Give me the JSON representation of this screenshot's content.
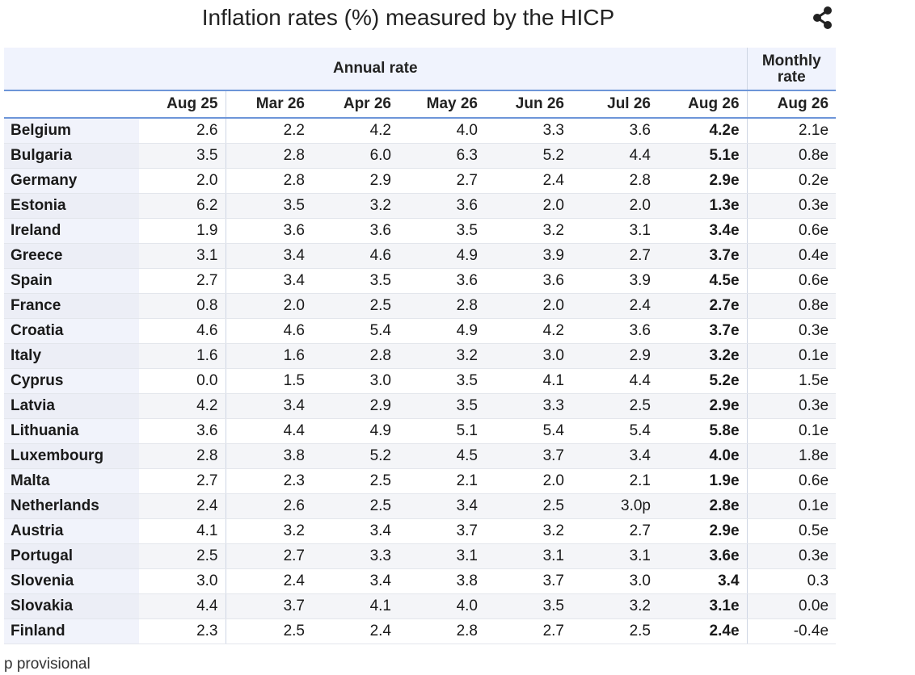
{
  "title": "Inflation rates (%) measured by the HICP",
  "icons": {
    "share": "share-icon"
  },
  "table": {
    "group_headers": {
      "annual": "Annual rate",
      "monthly_line1": "Monthly",
      "monthly_line2": "rate"
    },
    "columns": [
      "Aug 25",
      "Mar 26",
      "Apr 26",
      "May 26",
      "Jun 26",
      "Jul 26",
      "Aug 26",
      "Aug 26"
    ],
    "rows": [
      {
        "country": "Belgium",
        "values": [
          "2.6",
          "2.2",
          "4.2",
          "4.0",
          "3.3",
          "3.6",
          "4.2e",
          "2.1e"
        ]
      },
      {
        "country": "Bulgaria",
        "values": [
          "3.5",
          "2.8",
          "6.0",
          "6.3",
          "5.2",
          "4.4",
          "5.1e",
          "0.8e"
        ]
      },
      {
        "country": "Germany",
        "values": [
          "2.0",
          "2.8",
          "2.9",
          "2.7",
          "2.4",
          "2.8",
          "2.9e",
          "0.2e"
        ]
      },
      {
        "country": "Estonia",
        "values": [
          "6.2",
          "3.5",
          "3.2",
          "3.6",
          "2.0",
          "2.0",
          "1.3e",
          "0.3e"
        ]
      },
      {
        "country": "Ireland",
        "values": [
          "1.9",
          "3.6",
          "3.6",
          "3.5",
          "3.2",
          "3.1",
          "3.4e",
          "0.6e"
        ]
      },
      {
        "country": "Greece",
        "values": [
          "3.1",
          "3.4",
          "4.6",
          "4.9",
          "3.9",
          "2.7",
          "3.7e",
          "0.4e"
        ]
      },
      {
        "country": "Spain",
        "values": [
          "2.7",
          "3.4",
          "3.5",
          "3.6",
          "3.6",
          "3.9",
          "4.5e",
          "0.6e"
        ]
      },
      {
        "country": "France",
        "values": [
          "0.8",
          "2.0",
          "2.5",
          "2.8",
          "2.0",
          "2.4",
          "2.7e",
          "0.8e"
        ]
      },
      {
        "country": "Croatia",
        "values": [
          "4.6",
          "4.6",
          "5.4",
          "4.9",
          "4.2",
          "3.6",
          "3.7e",
          "0.3e"
        ]
      },
      {
        "country": "Italy",
        "values": [
          "1.6",
          "1.6",
          "2.8",
          "3.2",
          "3.0",
          "2.9",
          "3.2e",
          "0.1e"
        ]
      },
      {
        "country": "Cyprus",
        "values": [
          "0.0",
          "1.5",
          "3.0",
          "3.5",
          "4.1",
          "4.4",
          "5.2e",
          "1.5e"
        ]
      },
      {
        "country": "Latvia",
        "values": [
          "4.2",
          "3.4",
          "2.9",
          "3.5",
          "3.3",
          "2.5",
          "2.9e",
          "0.3e"
        ]
      },
      {
        "country": "Lithuania",
        "values": [
          "3.6",
          "4.4",
          "4.9",
          "5.1",
          "5.4",
          "5.4",
          "5.8e",
          "0.1e"
        ]
      },
      {
        "country": "Luxembourg",
        "values": [
          "2.8",
          "3.8",
          "5.2",
          "4.5",
          "3.7",
          "3.4",
          "4.0e",
          "1.8e"
        ]
      },
      {
        "country": "Malta",
        "values": [
          "2.7",
          "2.3",
          "2.5",
          "2.1",
          "2.0",
          "2.1",
          "1.9e",
          "0.6e"
        ]
      },
      {
        "country": "Netherlands",
        "values": [
          "2.4",
          "2.6",
          "2.5",
          "3.4",
          "2.5",
          "3.0p",
          "2.8e",
          "0.1e"
        ]
      },
      {
        "country": "Austria",
        "values": [
          "4.1",
          "3.2",
          "3.4",
          "3.7",
          "3.2",
          "2.7",
          "2.9e",
          "0.5e"
        ]
      },
      {
        "country": "Portugal",
        "values": [
          "2.5",
          "2.7",
          "3.3",
          "3.1",
          "3.1",
          "3.1",
          "3.6e",
          "0.3e"
        ]
      },
      {
        "country": "Slovenia",
        "values": [
          "3.0",
          "2.4",
          "3.4",
          "3.8",
          "3.7",
          "3.0",
          "3.4",
          "0.3"
        ]
      },
      {
        "country": "Slovakia",
        "values": [
          "4.4",
          "3.7",
          "4.1",
          "4.0",
          "3.5",
          "3.2",
          "3.1e",
          "0.0e"
        ]
      },
      {
        "country": "Finland",
        "values": [
          "2.3",
          "2.5",
          "2.4",
          "2.8",
          "2.7",
          "2.5",
          "2.4e",
          "-0.4e"
        ]
      }
    ]
  },
  "footnote": "p provisional"
}
